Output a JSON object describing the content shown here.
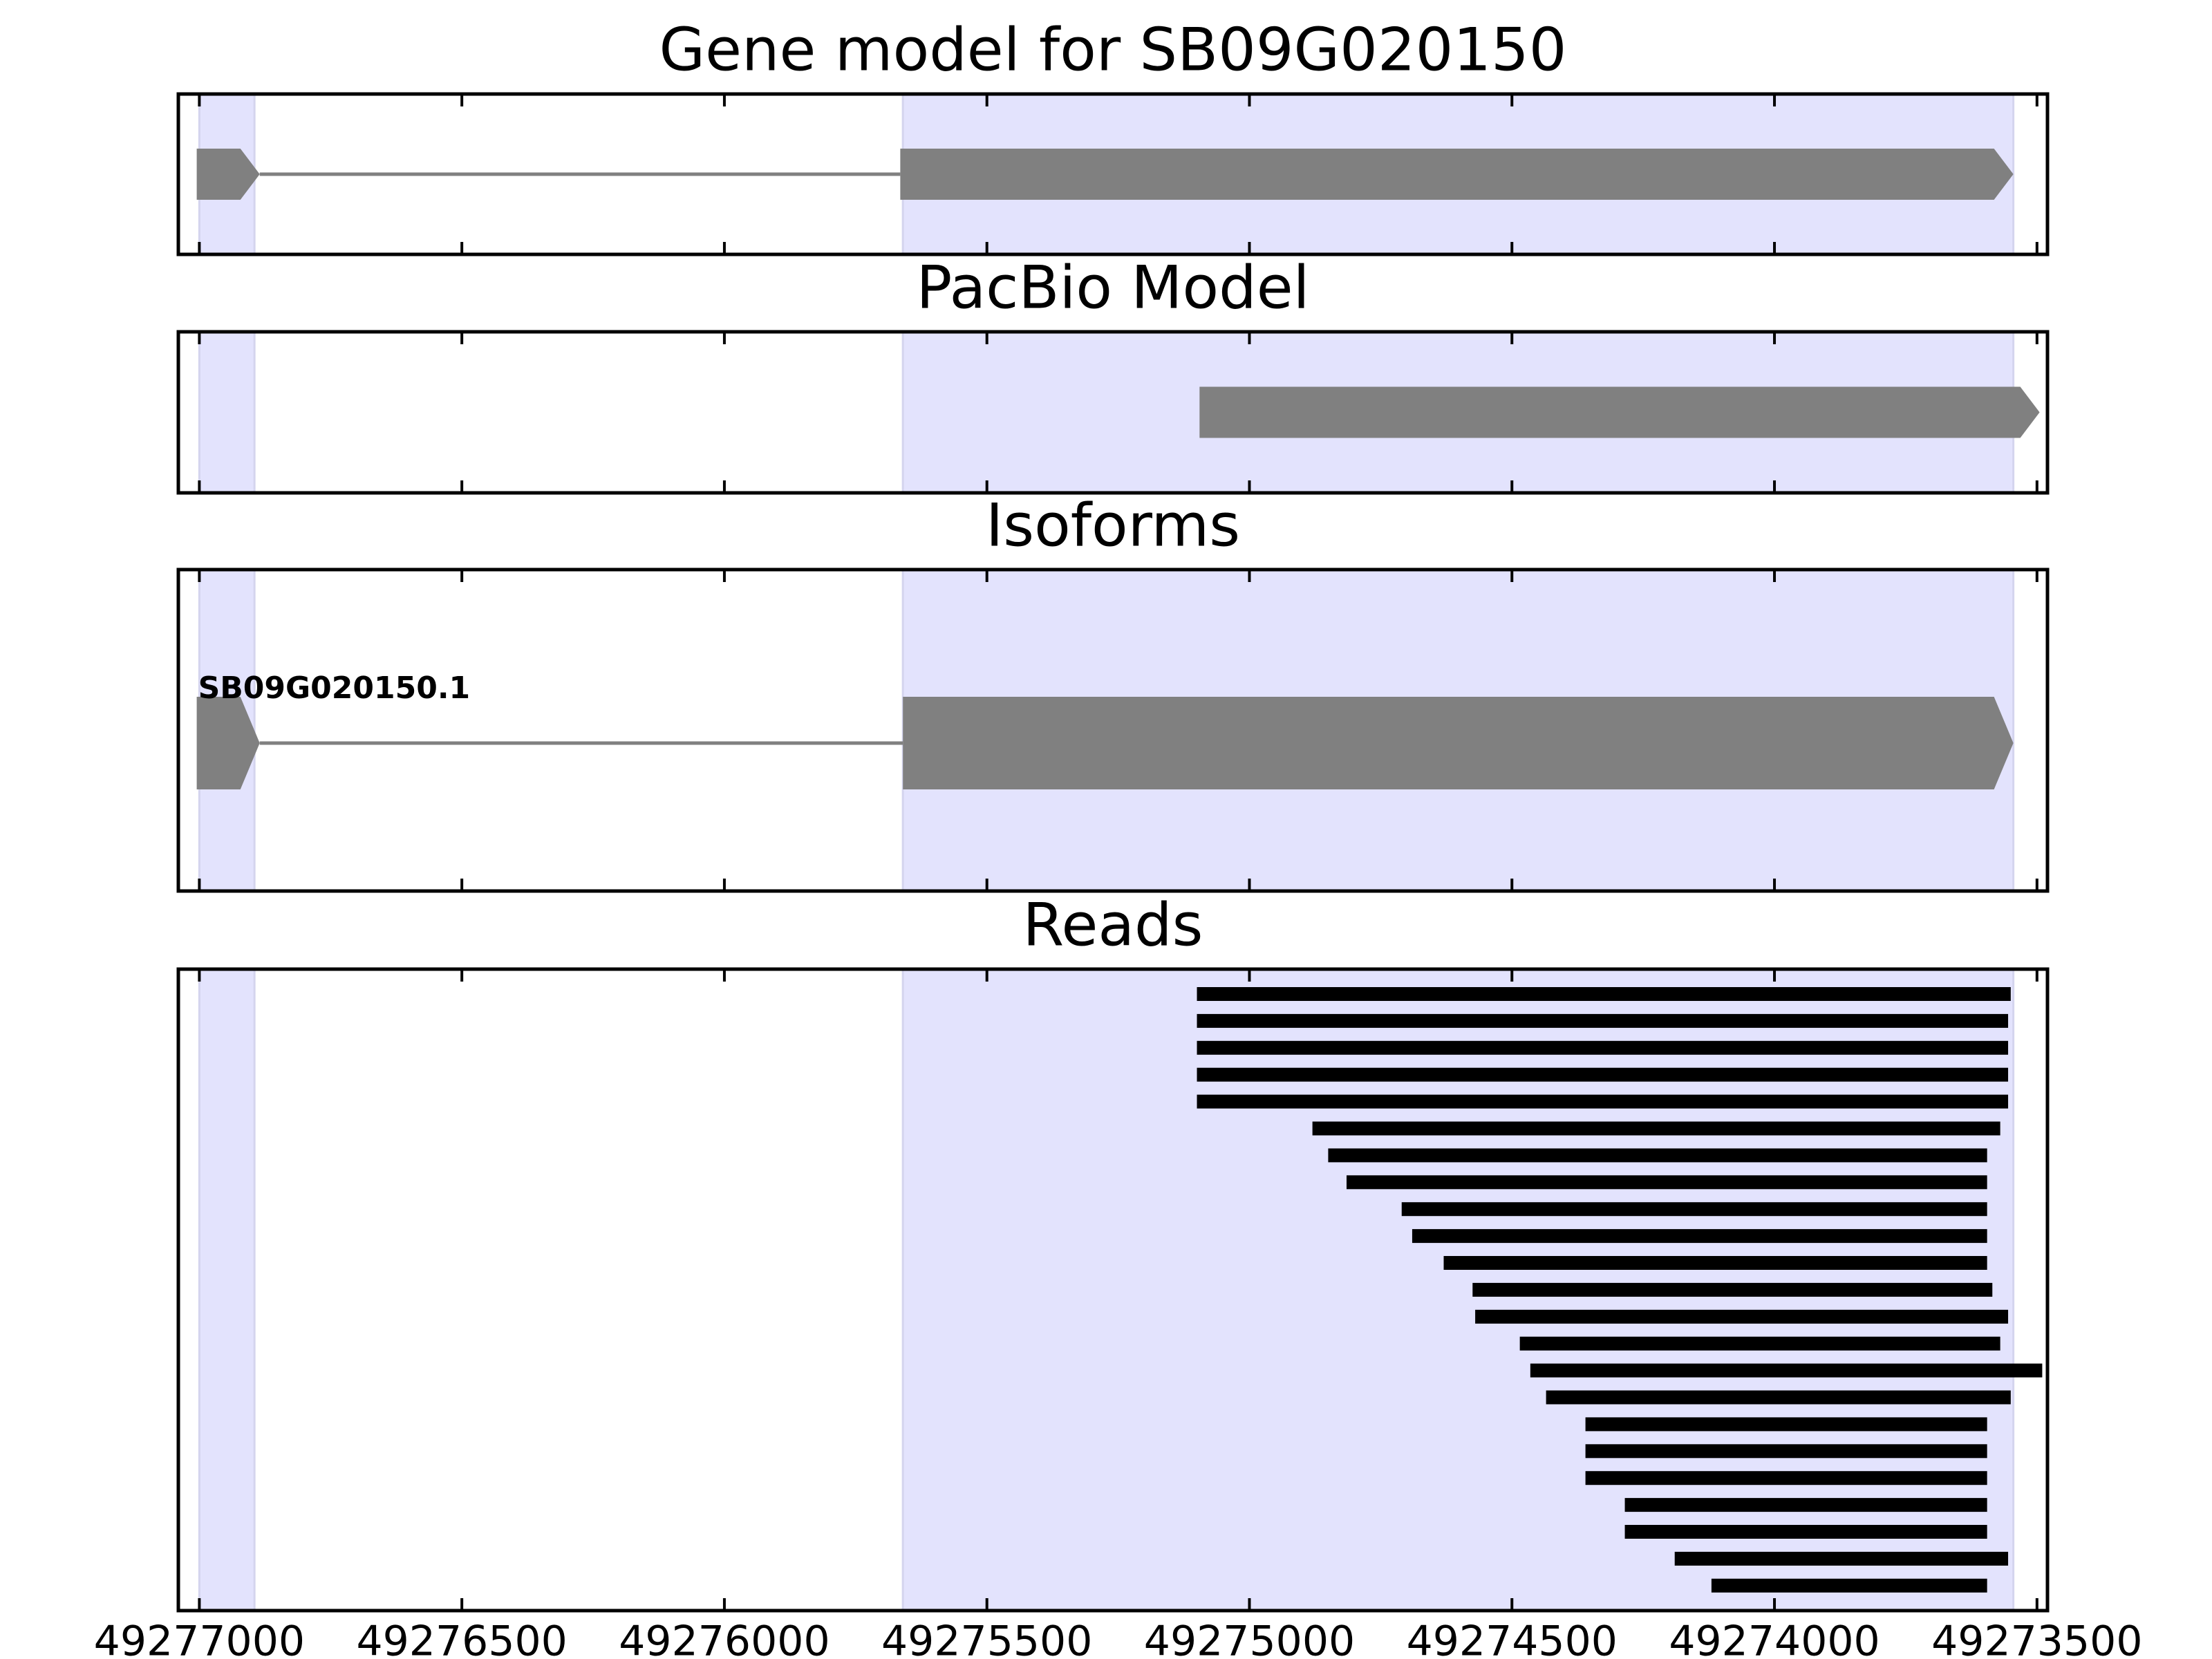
{
  "colors": {
    "exon_shade": "#e3e3fd",
    "feature": "#808080",
    "intron": "#808080",
    "read": "#000000",
    "frame": "#000000"
  },
  "chart_data": [
    {
      "type": "gene-track",
      "title": "Gene model for SB09G020150",
      "xlim": [
        49277040,
        49273480
      ],
      "x_ticks": [
        49277000,
        49276500,
        49276000,
        49275500,
        49275000,
        49274500,
        49274000,
        49273500
      ],
      "shaded_exons": [
        [
          49277000,
          49276895
        ],
        [
          49275660,
          49273545
        ]
      ],
      "features": [
        {
          "kind": "exon",
          "start": 49277005,
          "end": 49276885,
          "pointed_end": true
        },
        {
          "kind": "intron",
          "start": 49276885,
          "end": 49275665
        },
        {
          "kind": "exon",
          "start": 49275665,
          "end": 49273545,
          "pointed_end": true
        }
      ]
    },
    {
      "type": "gene-track",
      "title": "PacBio Model",
      "xlim": [
        49277040,
        49273480
      ],
      "x_ticks": [
        49277000,
        49276500,
        49276000,
        49275500,
        49275000,
        49274500,
        49274000,
        49273500
      ],
      "shaded_exons": [
        [
          49277000,
          49276895
        ],
        [
          49275660,
          49273545
        ]
      ],
      "features": [
        {
          "kind": "exon",
          "start": 49275095,
          "end": 49273495,
          "pointed_end": true
        }
      ]
    },
    {
      "type": "gene-track",
      "title": "Isoforms",
      "xlim": [
        49277040,
        49273480
      ],
      "x_ticks": [
        49277000,
        49276500,
        49276000,
        49275500,
        49275000,
        49274500,
        49274000,
        49273500
      ],
      "shaded_exons": [
        [
          49277000,
          49276895
        ],
        [
          49275660,
          49273545
        ]
      ],
      "isoform_label": "SB09G020150.1",
      "features": [
        {
          "kind": "exon",
          "start": 49277005,
          "end": 49276885,
          "pointed_end": true
        },
        {
          "kind": "intron",
          "start": 49276885,
          "end": 49275660
        },
        {
          "kind": "exon",
          "start": 49275660,
          "end": 49273545,
          "pointed_end": true
        }
      ]
    },
    {
      "type": "read-track",
      "title": "Reads",
      "xlim": [
        49277040,
        49273480
      ],
      "x_ticks": [
        49277000,
        49276500,
        49276000,
        49275500,
        49275000,
        49274500,
        49274000,
        49273500
      ],
      "x_tick_labels": [
        "49277000",
        "49276500",
        "49276000",
        "49275500",
        "49275000",
        "49274500",
        "49274000",
        "49273500"
      ],
      "shaded_exons": [
        [
          49277000,
          49276895
        ],
        [
          49275660,
          49273545
        ]
      ],
      "reads": [
        [
          49275100,
          49273550
        ],
        [
          49275100,
          49273555
        ],
        [
          49275100,
          49273555
        ],
        [
          49275100,
          49273555
        ],
        [
          49275100,
          49273555
        ],
        [
          49274880,
          49273570
        ],
        [
          49274850,
          49273595
        ],
        [
          49274815,
          49273595
        ],
        [
          49274710,
          49273595
        ],
        [
          49274690,
          49273595
        ],
        [
          49274630,
          49273595
        ],
        [
          49274575,
          49273585
        ],
        [
          49274570,
          49273555
        ],
        [
          49274485,
          49273570
        ],
        [
          49274465,
          49273490
        ],
        [
          49274435,
          49273550
        ],
        [
          49274360,
          49273595
        ],
        [
          49274360,
          49273595
        ],
        [
          49274360,
          49273595
        ],
        [
          49274285,
          49273595
        ],
        [
          49274285,
          49273595
        ],
        [
          49274190,
          49273555
        ],
        [
          49274120,
          49273595
        ]
      ]
    }
  ]
}
